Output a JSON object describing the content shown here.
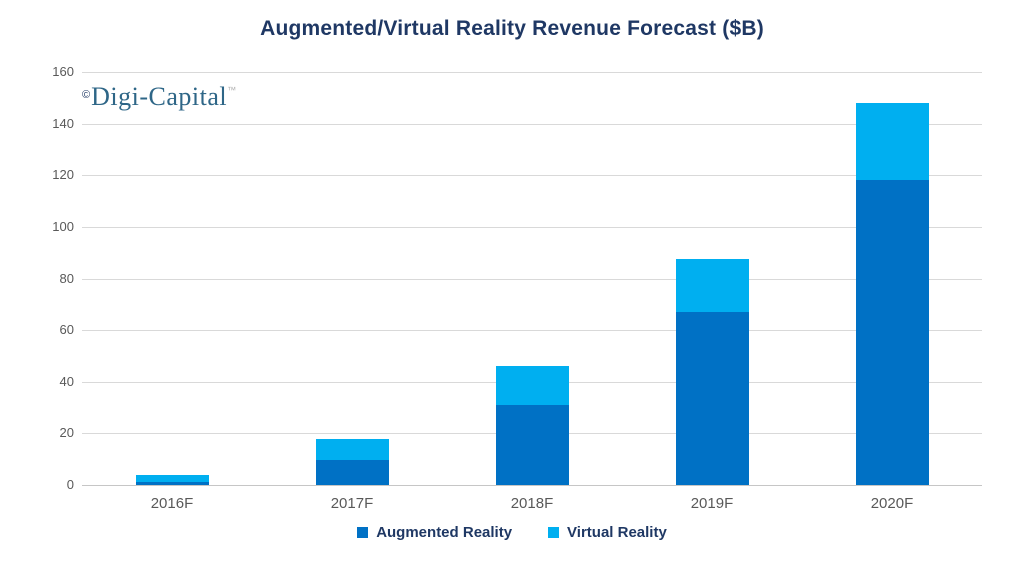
{
  "logo": {
    "copyright": "©",
    "text": "Digi-Capital",
    "trademark": "™"
  },
  "chart_data": {
    "type": "bar",
    "stacked": true,
    "title": "Augmented/Virtual Reality Revenue Forecast ($B)",
    "categories": [
      "2016F",
      "2017F",
      "2018F",
      "2019F",
      "2020F"
    ],
    "series": [
      {
        "name": "Augmented Reality",
        "color": "#0071c5",
        "values": [
          1.2,
          9.5,
          31,
          67,
          118
        ]
      },
      {
        "name": "Virtual Reality",
        "color": "#00aff0",
        "values": [
          2.8,
          8.5,
          15,
          20.5,
          30
        ]
      }
    ],
    "totals": [
      4,
      18,
      46,
      87.5,
      148
    ],
    "ylim": [
      0,
      160
    ],
    "y_ticks": [
      0,
      20,
      40,
      60,
      80,
      100,
      120,
      140,
      160
    ],
    "xlabel": "",
    "ylabel": "",
    "grid": "horizontal",
    "legend_position": "bottom",
    "colors": {
      "title_text": "#1f3864",
      "axis_text": "#595959",
      "gridline": "#d9d9d9",
      "logo_text": "#2e6687"
    }
  }
}
